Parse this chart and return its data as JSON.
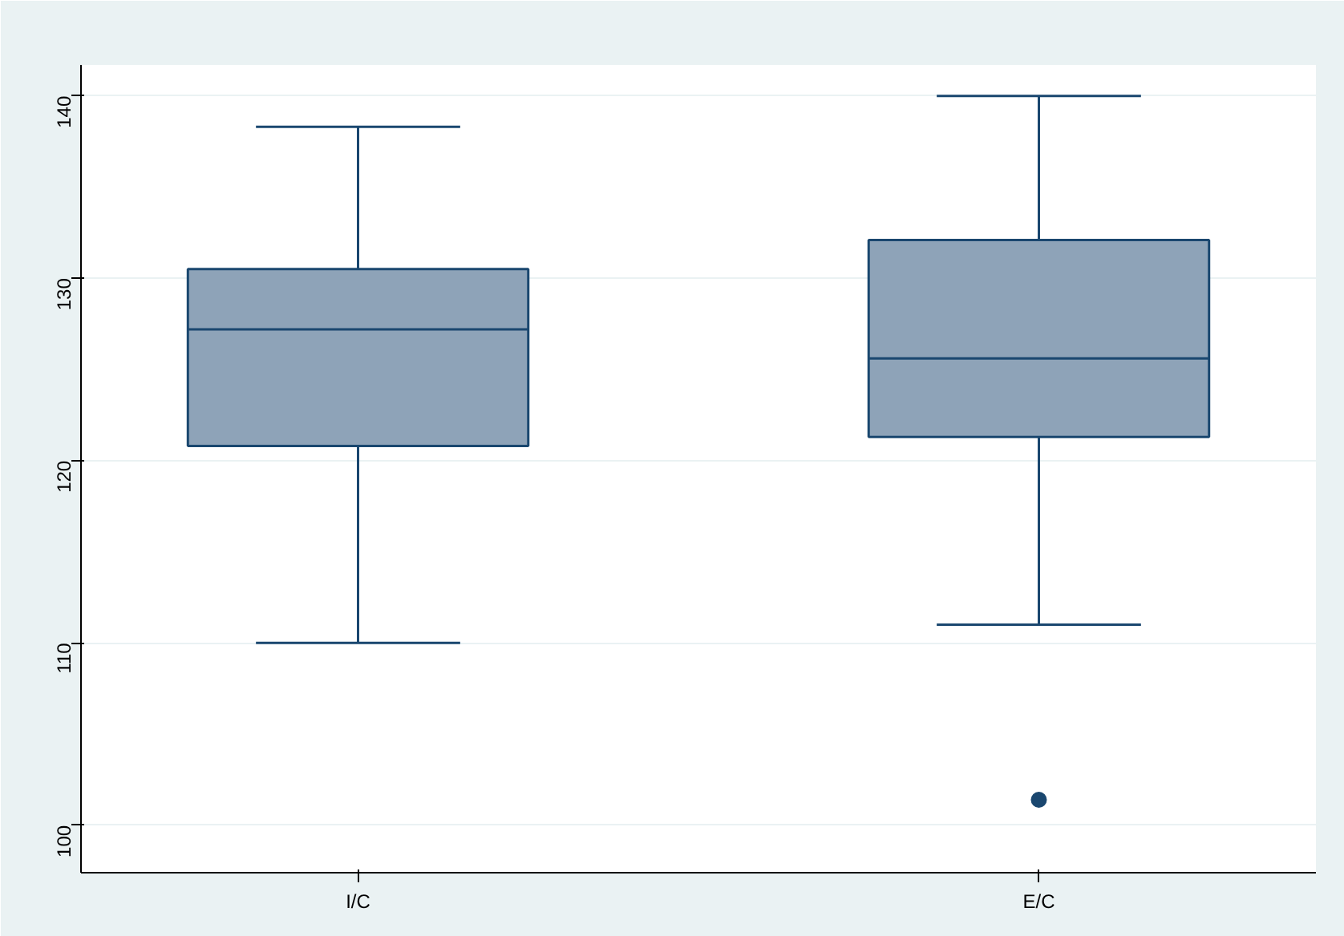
{
  "chart_data": {
    "type": "box",
    "categories": [
      "I/C",
      "E/C"
    ],
    "boxes": [
      {
        "low": 110.0,
        "q1": 120.8,
        "median": 127.2,
        "q3": 130.5,
        "high": 138.3
      },
      {
        "low": 111.0,
        "q1": 121.3,
        "median": 125.6,
        "q3": 132.1,
        "high": 140.0,
        "outliers": [
          101.4
        ]
      }
    ],
    "color": "#8ea3b8",
    "ylim": [
      97.4,
      141.7
    ],
    "yticks": [
      100,
      110,
      120,
      130,
      140
    ],
    "grid": "y"
  }
}
